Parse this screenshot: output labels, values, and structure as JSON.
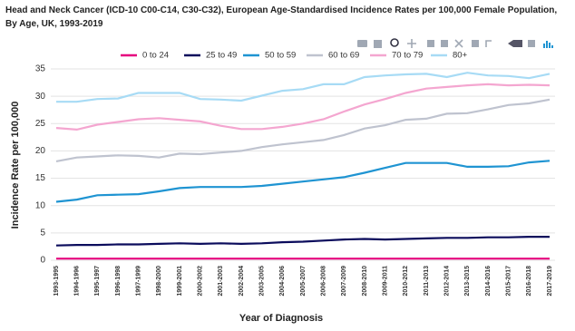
{
  "chart_data": {
    "type": "line",
    "title": "Head and Neck Cancer (ICD-10 C00-C14, C30-C32), European Age-Standardised Incidence Rates per 100,000 Female Population, By Age, UK, 1993-2019",
    "x_label": "Year of Diagnosis",
    "y_label": "Incidence Rate per 100,000",
    "categories": [
      "1993-1995",
      "1994-1996",
      "1995-1997",
      "1996-1998",
      "1997-1999",
      "1998-2000",
      "1999-2001",
      "2000-2002",
      "2001-2003",
      "2002-2004",
      "2003-2005",
      "2004-2006",
      "2005-2007",
      "2006-2008",
      "2007-2009",
      "2008-2010",
      "2009-2011",
      "2010-2012",
      "2011-2013",
      "2012-2014",
      "2013-2015",
      "2014-2016",
      "2015-2017",
      "2016-2018",
      "2017-2019"
    ],
    "ylim": [
      0,
      35
    ],
    "yticks": [
      0,
      5,
      10,
      15,
      20,
      25,
      30,
      35
    ],
    "grid": true,
    "series": [
      {
        "name": "0 to 24",
        "color": "#e6007e",
        "values": [
          0.3,
          0.3,
          0.3,
          0.3,
          0.3,
          0.3,
          0.3,
          0.3,
          0.3,
          0.3,
          0.3,
          0.3,
          0.3,
          0.3,
          0.3,
          0.3,
          0.3,
          0.3,
          0.3,
          0.3,
          0.3,
          0.3,
          0.3,
          0.3,
          0.3
        ]
      },
      {
        "name": "25 to 49",
        "color": "#0b0c5c",
        "values": [
          2.7,
          2.8,
          2.8,
          2.9,
          2.9,
          3.0,
          3.1,
          3.0,
          3.1,
          3.0,
          3.1,
          3.3,
          3.4,
          3.6,
          3.8,
          3.9,
          3.8,
          3.9,
          4.0,
          4.1,
          4.1,
          4.2,
          4.2,
          4.3,
          4.3
        ]
      },
      {
        "name": "50 to 59",
        "color": "#1f94d2",
        "values": [
          10.7,
          11.1,
          11.9,
          12.0,
          12.1,
          12.6,
          13.2,
          13.4,
          13.4,
          13.4,
          13.6,
          14.0,
          14.4,
          14.8,
          15.2,
          16.0,
          16.9,
          17.8,
          17.8,
          17.8,
          17.1,
          17.1,
          17.2,
          17.9,
          18.2
        ]
      },
      {
        "name": "60 to 69",
        "color": "#bfc3cf",
        "values": [
          18.1,
          18.8,
          19.0,
          19.2,
          19.1,
          18.8,
          19.5,
          19.4,
          19.7,
          20.0,
          20.7,
          21.2,
          21.6,
          22.0,
          22.9,
          24.1,
          24.7,
          25.7,
          25.9,
          26.8,
          26.9,
          27.6,
          28.4,
          28.7,
          29.4
        ]
      },
      {
        "name": "70 to 79",
        "color": "#f4a6d0",
        "values": [
          24.2,
          23.9,
          24.8,
          25.3,
          25.8,
          26.0,
          25.7,
          25.4,
          24.6,
          24.0,
          24.0,
          24.4,
          25.0,
          25.8,
          27.2,
          28.5,
          29.5,
          30.6,
          31.4,
          31.7,
          32.0,
          32.2,
          32.0,
          32.1,
          32.0
        ]
      },
      {
        "name": "80+",
        "color": "#a7dbf5",
        "values": [
          29.0,
          29.0,
          29.5,
          29.6,
          30.6,
          30.6,
          30.6,
          29.5,
          29.4,
          29.2,
          30.1,
          31.0,
          31.3,
          32.2,
          32.2,
          33.5,
          33.8,
          34.0,
          34.1,
          33.5,
          34.3,
          33.8,
          33.7,
          33.3,
          34.1
        ]
      }
    ]
  }
}
